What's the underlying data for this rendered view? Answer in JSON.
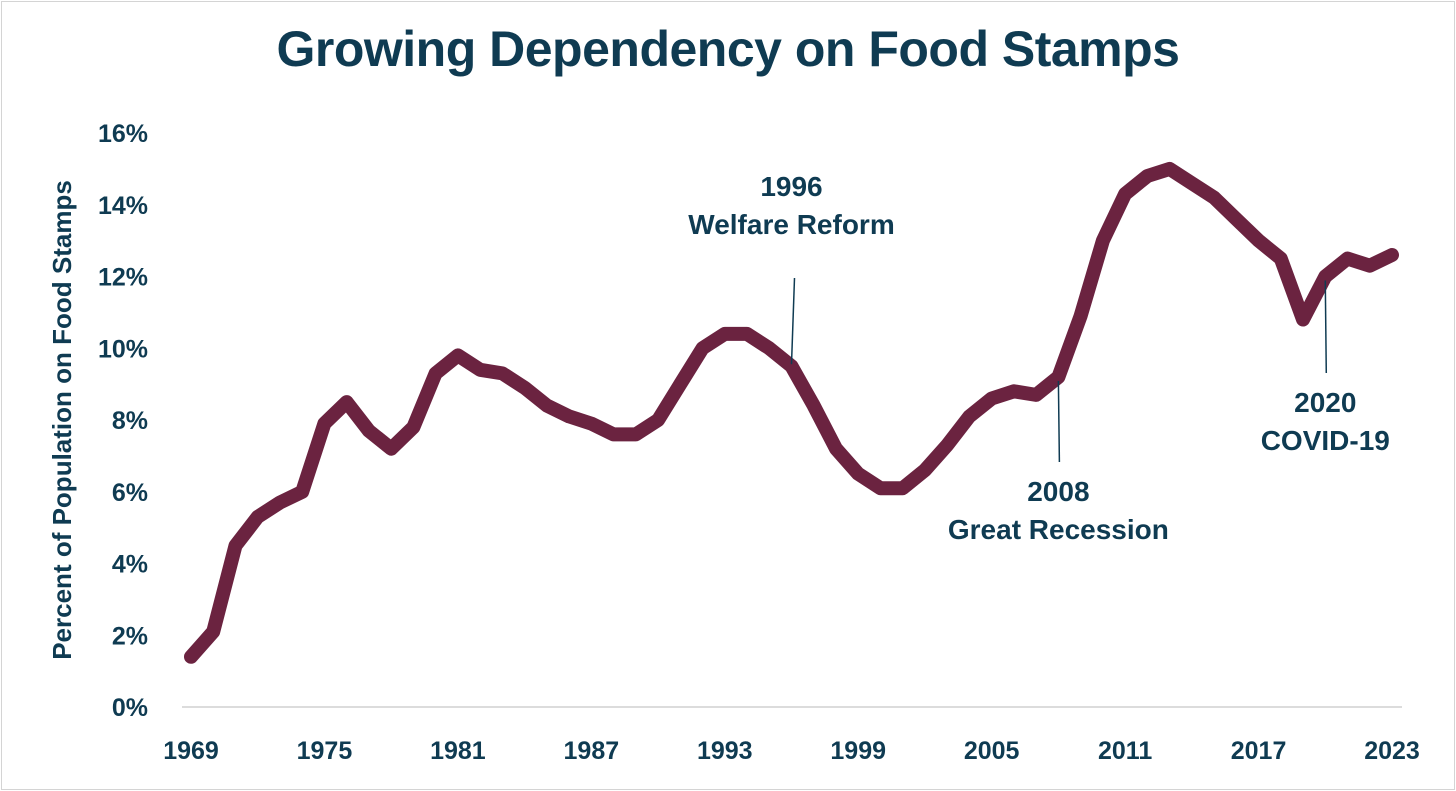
{
  "chart_data": {
    "type": "line",
    "title": "Growing Dependency on Food Stamps",
    "xlabel": "",
    "ylabel": "Percent of Population on Food Stamps",
    "xlim": [
      1969,
      2023
    ],
    "ylim": [
      0,
      16
    ],
    "x_ticks": [
      1969,
      1975,
      1981,
      1987,
      1993,
      1999,
      2005,
      2011,
      2017,
      2023
    ],
    "y_ticks": [
      0,
      2,
      4,
      6,
      8,
      10,
      12,
      14,
      16
    ],
    "y_tick_labels": [
      "0%",
      "2%",
      "4%",
      "6%",
      "8%",
      "10%",
      "12%",
      "14%",
      "16%"
    ],
    "x_tick_labels": [
      "1969",
      "1975",
      "1981",
      "1987",
      "1993",
      "1999",
      "2005",
      "2011",
      "2017",
      "2023"
    ],
    "grid": false,
    "series": [
      {
        "name": "Percent of Population on Food Stamps",
        "color": "#6b2340",
        "x": [
          1969,
          1970,
          1971,
          1972,
          1973,
          1974,
          1975,
          1976,
          1977,
          1978,
          1979,
          1980,
          1981,
          1982,
          1983,
          1984,
          1985,
          1986,
          1987,
          1988,
          1989,
          1990,
          1991,
          1992,
          1993,
          1994,
          1995,
          1996,
          1997,
          1998,
          1999,
          2000,
          2001,
          2002,
          2003,
          2004,
          2005,
          2006,
          2007,
          2008,
          2009,
          2010,
          2011,
          2012,
          2013,
          2014,
          2015,
          2016,
          2017,
          2018,
          2019,
          2020,
          2021,
          2022,
          2023
        ],
        "values": [
          1.4,
          2.1,
          4.5,
          5.3,
          5.7,
          6.0,
          7.9,
          8.5,
          7.7,
          7.2,
          7.8,
          9.3,
          9.8,
          9.4,
          9.3,
          8.9,
          8.4,
          8.1,
          7.9,
          7.6,
          7.6,
          8.0,
          9.0,
          10.0,
          10.4,
          10.4,
          10.0,
          9.5,
          8.4,
          7.2,
          6.5,
          6.1,
          6.1,
          6.6,
          7.3,
          8.1,
          8.6,
          8.8,
          8.7,
          9.2,
          10.9,
          13.0,
          14.3,
          14.8,
          15.0,
          14.6,
          14.2,
          13.6,
          13.0,
          12.5,
          10.8,
          12.0,
          12.5,
          12.3,
          12.6
        ]
      }
    ],
    "annotations": [
      {
        "x": 1996,
        "y": 9.5,
        "label_lines": [
          "1996",
          "Welfare Reform"
        ],
        "position": "above"
      },
      {
        "x": 2008,
        "y": 9.2,
        "label_lines": [
          "2008",
          "Great Recession"
        ],
        "position": "below"
      },
      {
        "x": 2020,
        "y": 12.0,
        "label_lines": [
          "2020",
          "COVID-19"
        ],
        "position": "below"
      }
    ]
  }
}
